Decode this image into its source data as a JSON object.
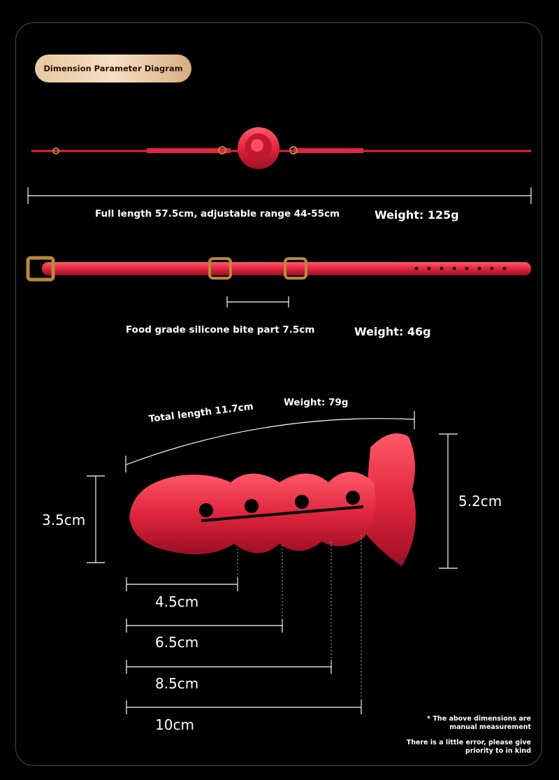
{
  "title": "Dimension Parameter Diagram",
  "section1": {
    "length_label": "Full length 57.5cm, adjustable range 44-55cm",
    "weight_label": "Weight: 125g"
  },
  "section2": {
    "bite_label": "Food grade silicone bite part 7.5cm",
    "weight_label": "Weight: 46g"
  },
  "section3": {
    "total_length_label": "Total length 11.7cm",
    "weight_label": "Weight: 79g",
    "height_left": "3.5cm",
    "height_right": "5.2cm",
    "lengths": [
      "4.5cm",
      "6.5cm",
      "8.5cm",
      "10cm"
    ]
  },
  "notes": {
    "line1": "* The above dimensions are",
    "line2": "manual measurement",
    "line3": "There is a little error, please give",
    "line4": "priority to in kind"
  },
  "colors": {
    "product": "#e0263f",
    "badge": "#f0d3b2",
    "hardware": "#b8893a"
  }
}
